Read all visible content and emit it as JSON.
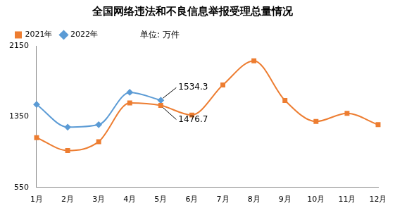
{
  "chart_data": {
    "type": "line",
    "title": "全国网络违法和不良信息举报受理总量情况",
    "subtitle": "单位: 万件",
    "categories": [
      "1月",
      "2月",
      "3月",
      "4月",
      "5月",
      "6月",
      "7月",
      "8月",
      "9月",
      "10月",
      "11月",
      "12月"
    ],
    "series": [
      {
        "name": "2021年",
        "color": "#ED7D31",
        "marker": "square",
        "line_style": "smooth",
        "values": [
          1112,
          966,
          1067,
          1505,
          1476.7,
          1368,
          1707,
          1981,
          1533,
          1295,
          1387,
          1259
        ]
      },
      {
        "name": "2022年",
        "color": "#5B9BD5",
        "marker": "diamond",
        "line_style": "smooth",
        "values": [
          1487,
          1231,
          1259,
          1625,
          1534.3,
          null,
          null,
          null,
          null,
          null,
          null,
          null
        ]
      }
    ],
    "annotations": [
      {
        "series": "2022年",
        "category": "5月",
        "text": "1534.3"
      },
      {
        "series": "2021年",
        "category": "5月",
        "text": "1476.7"
      }
    ],
    "ylim": [
      550,
      2150
    ],
    "yticks": [
      550,
      1350,
      2150
    ],
    "grid": false,
    "legend": "top"
  }
}
